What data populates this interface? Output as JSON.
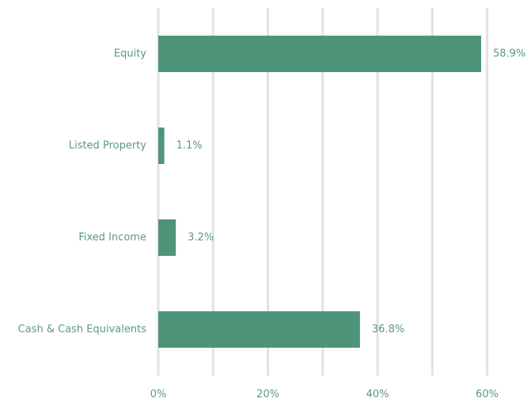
{
  "chart_data": {
    "type": "hbar",
    "categories": [
      "Equity",
      "Listed Property",
      "Fixed Income",
      "Cash & Cash Equivalents"
    ],
    "values": [
      58.9,
      1.1,
      3.2,
      36.8
    ],
    "value_labels": [
      "58.9%",
      "1.1%",
      "3.2%",
      "36.8%"
    ],
    "color": "#4e9479",
    "xlim": [
      0,
      68
    ],
    "xticks": [
      {
        "value": 0,
        "label": "0%"
      },
      {
        "value": 20,
        "label": "20%"
      },
      {
        "value": 40,
        "label": "40%"
      },
      {
        "value": 60,
        "label": "60%"
      }
    ],
    "xminor_grid": [
      10,
      30,
      50
    ],
    "grid": true
  }
}
